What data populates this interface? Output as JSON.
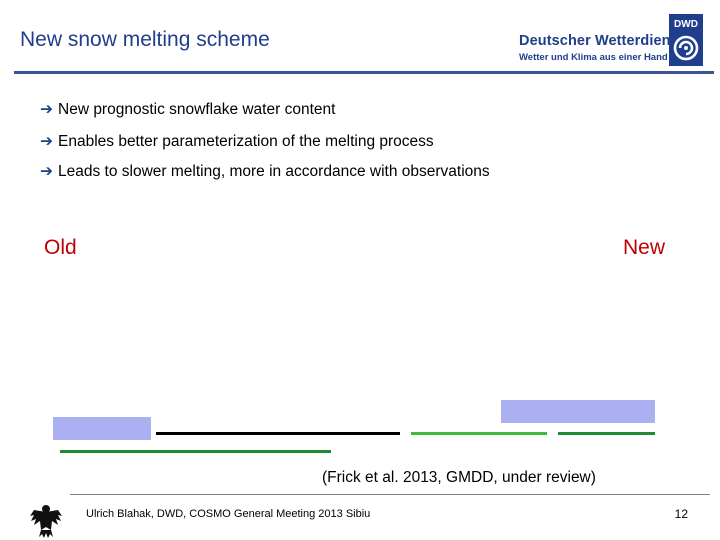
{
  "header": {
    "title": "New snow melting scheme",
    "brand_name": "Deutscher Wetterdienst",
    "brand_tagline": "Wetter und Klima aus einer Hand",
    "logo_text": "DWD",
    "logo_icon": "dwd-swirl-icon"
  },
  "bullets": [
    {
      "icon": "arrow-right-icon",
      "glyph": "➔",
      "text": "New prognostic snowflake water content"
    },
    {
      "icon": "arrow-right-icon",
      "glyph": "➔",
      "text": "Enables better parameterization of the melting process"
    },
    {
      "icon": "arrow-right-icon",
      "glyph": "➔",
      "text": "Leads to slower melting, more in accordance with observations"
    }
  ],
  "panels": {
    "old_label": "Old",
    "new_label": "New"
  },
  "colors": {
    "title_blue": "#1f3e8c",
    "label_red": "#c00000",
    "legend_blue": "#aab0f2",
    "line_green": "#3dbb3d",
    "line_darkgreen": "#1e8a32",
    "line_black": "#000000"
  },
  "citation": "(Frick et al. 2013, GMDD, under review)",
  "footer": {
    "author_text": "Ulrich Blahak, DWD, COSMO General Meeting 2013 Sibiu",
    "page_number": "12",
    "emblem_icon": "federal-eagle-icon"
  }
}
